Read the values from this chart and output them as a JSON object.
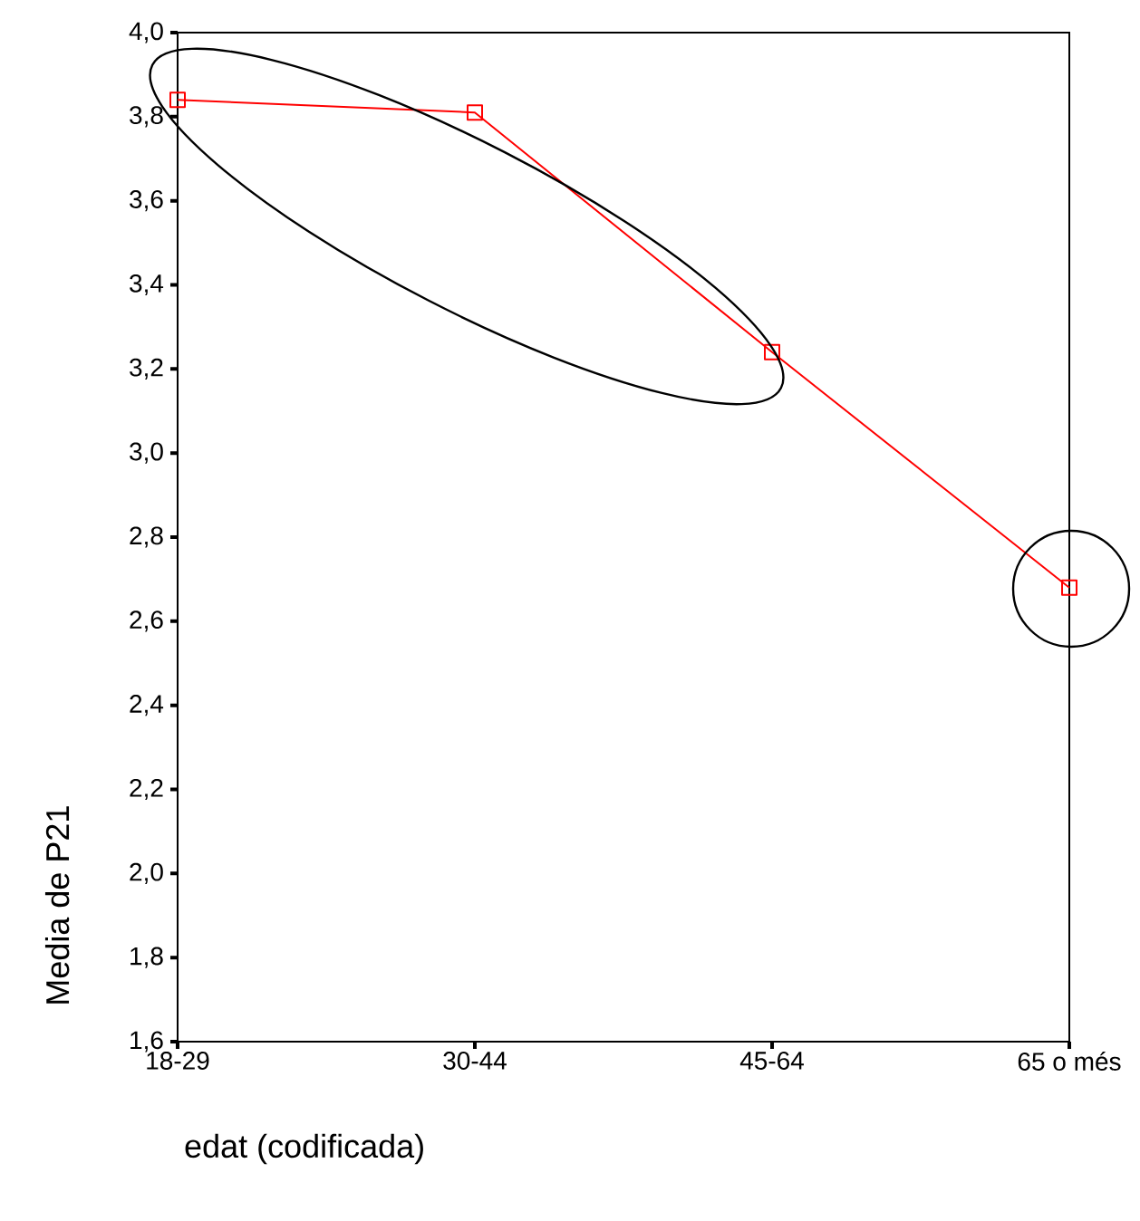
{
  "chart_data": {
    "type": "line",
    "xlabel": "edat (codificada)",
    "ylabel": "Media de P21",
    "categories": [
      "18-29",
      "30-44",
      "45-64",
      "65 o més"
    ],
    "series": [
      {
        "color": "#ff0000",
        "values": [
          3.84,
          3.81,
          3.24,
          2.68
        ]
      }
    ],
    "ylim": [
      1.6,
      4.0
    ],
    "yticks": [
      {
        "value": 1.6,
        "label": "1,6"
      },
      {
        "value": 1.8,
        "label": "1,8"
      },
      {
        "value": 2.0,
        "label": "2,0"
      },
      {
        "value": 2.2,
        "label": "2,2"
      },
      {
        "value": 2.4,
        "label": "2,4"
      },
      {
        "value": 2.6,
        "label": "2,6"
      },
      {
        "value": 2.8,
        "label": "2,8"
      },
      {
        "value": 3.0,
        "label": "3,0"
      },
      {
        "value": 3.2,
        "label": "3,2"
      },
      {
        "value": 3.4,
        "label": "3,4"
      },
      {
        "value": 3.6,
        "label": "3,6"
      },
      {
        "value": 3.8,
        "label": "3,8"
      },
      {
        "value": 4.0,
        "label": "4,0"
      }
    ],
    "marker": "square",
    "line_style": "solid"
  }
}
